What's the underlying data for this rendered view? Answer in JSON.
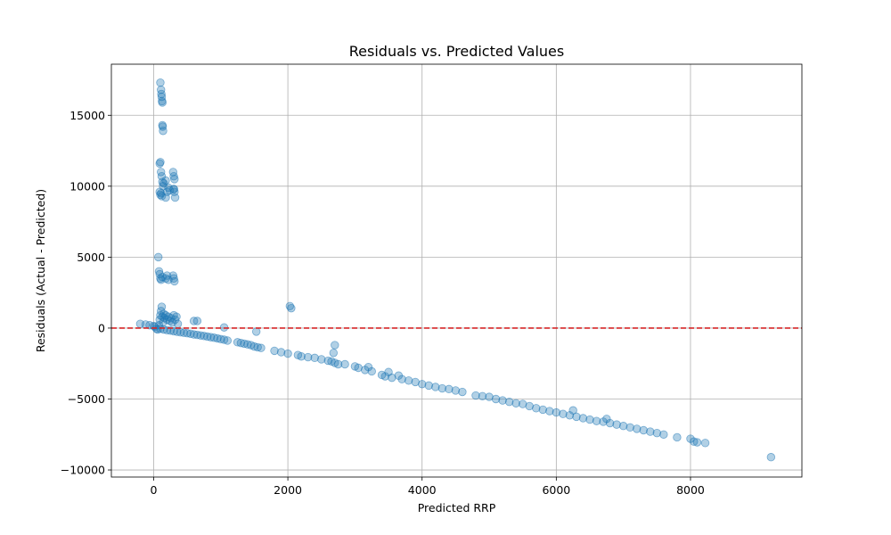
{
  "chart_data": {
    "type": "scatter",
    "title": "Residuals vs. Predicted Values",
    "xlabel": "Predicted RRP",
    "ylabel": "Residuals (Actual - Predicted)",
    "xlim": [
      -630,
      9660
    ],
    "ylim": [
      -10500,
      18600
    ],
    "xticks": [
      0,
      2000,
      4000,
      6000,
      8000
    ],
    "xtick_labels": [
      "0",
      "2000",
      "4000",
      "6000",
      "8000"
    ],
    "yticks": [
      -10000,
      -5000,
      0,
      5000,
      10000,
      15000
    ],
    "ytick_labels": [
      "−10000",
      "−5000",
      "0",
      "5000",
      "10000",
      "15000"
    ],
    "grid": true,
    "reference_line": {
      "y": 0,
      "style": "dashed",
      "color": "#d62728"
    },
    "point_color": "#1f77b4",
    "point_alpha": 0.35,
    "series": [
      {
        "values": [
          [
            -200,
            300
          ],
          [
            -120,
            250
          ],
          [
            -60,
            200
          ],
          [
            0,
            150
          ],
          [
            20,
            100
          ],
          [
            40,
            -50
          ],
          [
            60,
            -100
          ],
          [
            80,
            200
          ],
          [
            90,
            600
          ],
          [
            100,
            900
          ],
          [
            110,
            1200
          ],
          [
            120,
            1500
          ],
          [
            130,
            800
          ],
          [
            140,
            400
          ],
          [
            150,
            1000
          ],
          [
            160,
            700
          ],
          [
            180,
            900
          ],
          [
            200,
            600
          ],
          [
            220,
            800
          ],
          [
            240,
            500
          ],
          [
            260,
            700
          ],
          [
            280,
            400
          ],
          [
            300,
            900
          ],
          [
            320,
            600
          ],
          [
            340,
            800
          ],
          [
            360,
            300
          ],
          [
            100,
            17300
          ],
          [
            110,
            16800
          ],
          [
            115,
            16500
          ],
          [
            120,
            16300
          ],
          [
            125,
            16000
          ],
          [
            130,
            15900
          ],
          [
            130,
            14300
          ],
          [
            140,
            13900
          ],
          [
            135,
            14200
          ],
          [
            90,
            11600
          ],
          [
            100,
            11700
          ],
          [
            110,
            11000
          ],
          [
            120,
            10700
          ],
          [
            130,
            10300
          ],
          [
            140,
            10000
          ],
          [
            90,
            9600
          ],
          [
            100,
            9400
          ],
          [
            110,
            9500
          ],
          [
            120,
            9300
          ],
          [
            150,
            10200
          ],
          [
            180,
            10400
          ],
          [
            200,
            9600
          ],
          [
            220,
            9900
          ],
          [
            240,
            9700
          ],
          [
            180,
            9200
          ],
          [
            290,
            11000
          ],
          [
            300,
            10700
          ],
          [
            310,
            10500
          ],
          [
            300,
            9800
          ],
          [
            310,
            9600
          ],
          [
            320,
            9200
          ],
          [
            300,
            9800
          ],
          [
            70,
            5000
          ],
          [
            80,
            4000
          ],
          [
            90,
            3800
          ],
          [
            100,
            3500
          ],
          [
            110,
            3400
          ],
          [
            130,
            3600
          ],
          [
            180,
            3500
          ],
          [
            200,
            3700
          ],
          [
            220,
            3400
          ],
          [
            290,
            3700
          ],
          [
            300,
            3500
          ],
          [
            310,
            3300
          ],
          [
            600,
            500
          ],
          [
            650,
            500
          ],
          [
            1050,
            50
          ],
          [
            1530,
            -250
          ],
          [
            2030,
            1550
          ],
          [
            2050,
            1400
          ],
          [
            100,
            -50
          ],
          [
            150,
            -100
          ],
          [
            200,
            -150
          ],
          [
            250,
            -180
          ],
          [
            300,
            -220
          ],
          [
            350,
            -260
          ],
          [
            400,
            -300
          ],
          [
            450,
            -330
          ],
          [
            500,
            -360
          ],
          [
            550,
            -400
          ],
          [
            600,
            -450
          ],
          [
            650,
            -480
          ],
          [
            700,
            -520
          ],
          [
            750,
            -560
          ],
          [
            800,
            -600
          ],
          [
            850,
            -640
          ],
          [
            900,
            -680
          ],
          [
            950,
            -720
          ],
          [
            1000,
            -780
          ],
          [
            1050,
            -820
          ],
          [
            1100,
            -880
          ],
          [
            1250,
            -1000
          ],
          [
            1300,
            -1050
          ],
          [
            1350,
            -1100
          ],
          [
            1400,
            -1150
          ],
          [
            1450,
            -1200
          ],
          [
            1500,
            -1300
          ],
          [
            1550,
            -1350
          ],
          [
            1600,
            -1400
          ],
          [
            1800,
            -1600
          ],
          [
            1900,
            -1700
          ],
          [
            2000,
            -1800
          ],
          [
            2150,
            -1900
          ],
          [
            2200,
            -2000
          ],
          [
            2300,
            -2050
          ],
          [
            2400,
            -2100
          ],
          [
            2500,
            -2200
          ],
          [
            2600,
            -2300
          ],
          [
            2650,
            -2350
          ],
          [
            2700,
            -2450
          ],
          [
            2750,
            -2550
          ],
          [
            2850,
            -2550
          ],
          [
            2700,
            -1200
          ],
          [
            2680,
            -1750
          ],
          [
            3000,
            -2700
          ],
          [
            3050,
            -2800
          ],
          [
            3150,
            -2950
          ],
          [
            3200,
            -2750
          ],
          [
            3250,
            -3050
          ],
          [
            3400,
            -3300
          ],
          [
            3450,
            -3400
          ],
          [
            3500,
            -3100
          ],
          [
            3550,
            -3500
          ],
          [
            3650,
            -3350
          ],
          [
            3700,
            -3600
          ],
          [
            3800,
            -3700
          ],
          [
            3900,
            -3800
          ],
          [
            4000,
            -3950
          ],
          [
            4100,
            -4050
          ],
          [
            4200,
            -4150
          ],
          [
            4300,
            -4250
          ],
          [
            4400,
            -4300
          ],
          [
            4500,
            -4400
          ],
          [
            4600,
            -4500
          ],
          [
            4800,
            -4750
          ],
          [
            4900,
            -4800
          ],
          [
            5000,
            -4850
          ],
          [
            5100,
            -5000
          ],
          [
            5200,
            -5100
          ],
          [
            5300,
            -5200
          ],
          [
            5400,
            -5300
          ],
          [
            5500,
            -5350
          ],
          [
            5600,
            -5500
          ],
          [
            5700,
            -5650
          ],
          [
            5800,
            -5750
          ],
          [
            5900,
            -5850
          ],
          [
            6000,
            -5950
          ],
          [
            6100,
            -6050
          ],
          [
            6200,
            -6150
          ],
          [
            6250,
            -5800
          ],
          [
            6300,
            -6250
          ],
          [
            6400,
            -6350
          ],
          [
            6500,
            -6450
          ],
          [
            6600,
            -6550
          ],
          [
            6700,
            -6600
          ],
          [
            6750,
            -6400
          ],
          [
            6800,
            -6700
          ],
          [
            6900,
            -6800
          ],
          [
            7000,
            -6900
          ],
          [
            7100,
            -7000
          ],
          [
            7200,
            -7100
          ],
          [
            7300,
            -7200
          ],
          [
            7400,
            -7300
          ],
          [
            7500,
            -7400
          ],
          [
            7600,
            -7500
          ],
          [
            7800,
            -7700
          ],
          [
            8000,
            -7800
          ],
          [
            8050,
            -8000
          ],
          [
            8100,
            -8050
          ],
          [
            8220,
            -8100
          ],
          [
            9200,
            -9100
          ]
        ]
      }
    ]
  }
}
